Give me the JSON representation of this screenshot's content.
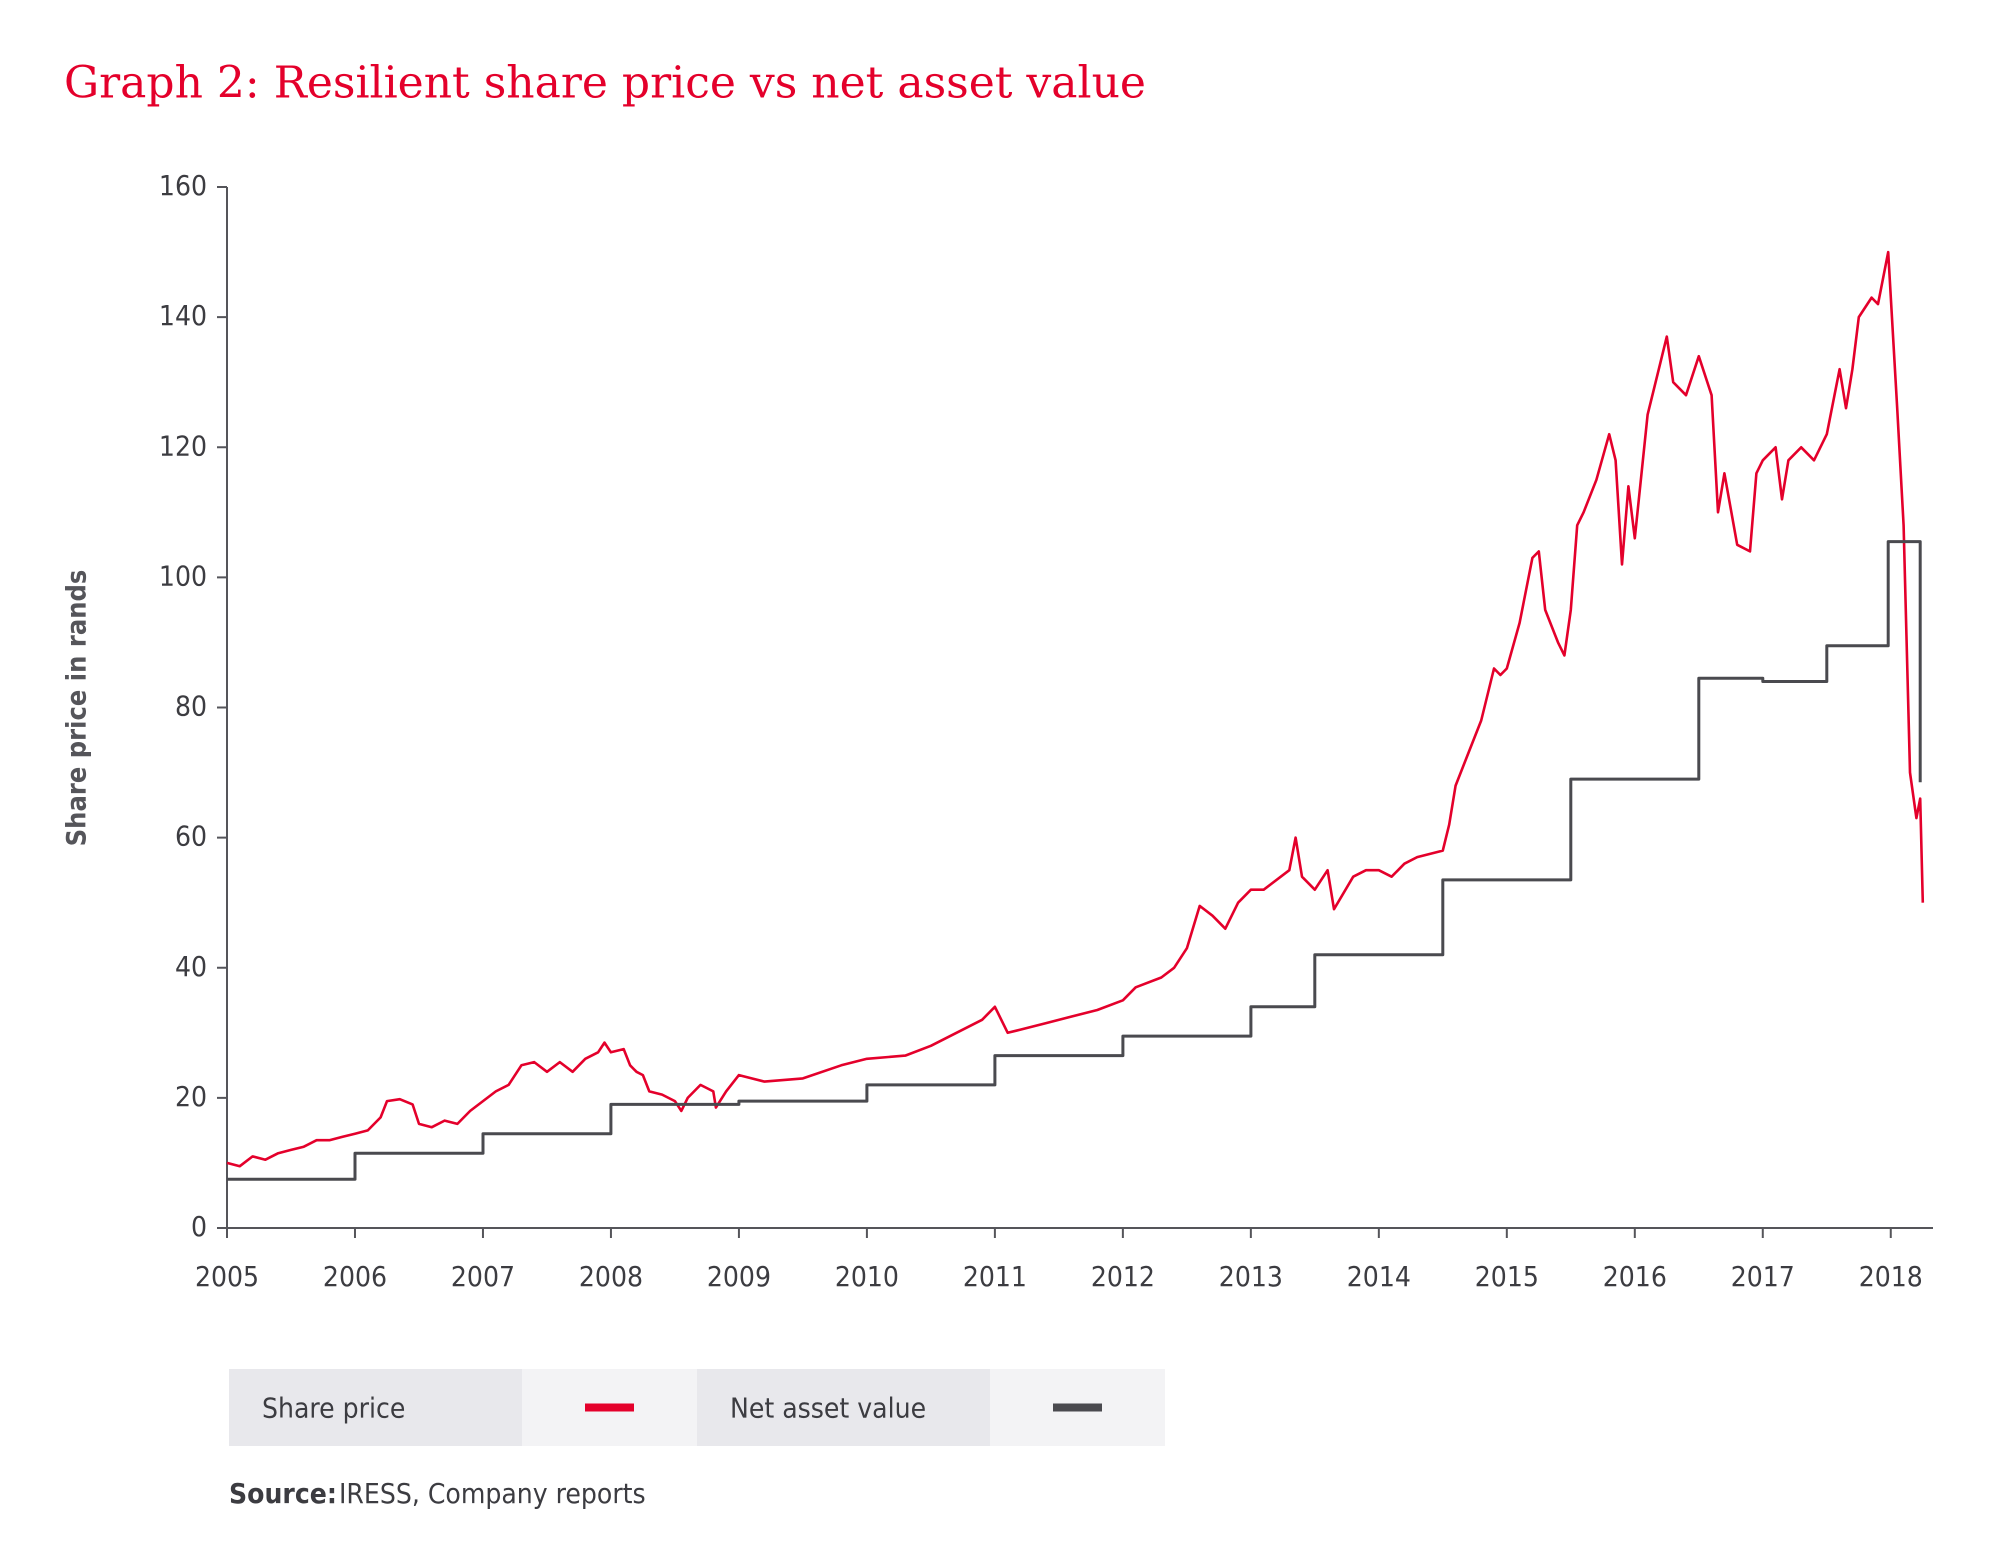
{
  "chart_data": {
    "type": "line",
    "title": "Graph 2: Resilient share price vs net asset value",
    "ylabel": "Share price in rands",
    "xlim": [
      2005,
      2018.33
    ],
    "xticks": [
      2005,
      2006,
      2007,
      2008,
      2009,
      2010,
      2011,
      2012,
      2013,
      2014,
      2015,
      2016,
      2017,
      2018
    ],
    "ylim": [
      0,
      160
    ],
    "yticks": [
      0,
      20,
      40,
      60,
      80,
      100,
      120,
      140,
      160
    ],
    "grid": false,
    "legend": "bottom",
    "series": [
      {
        "name": "Share price",
        "color": "#e4002b",
        "x": [
          2005.0,
          2005.1,
          2005.2,
          2005.3,
          2005.4,
          2005.5,
          2005.6,
          2005.7,
          2005.8,
          2005.9,
          2006.0,
          2006.1,
          2006.2,
          2006.25,
          2006.35,
          2006.45,
          2006.5,
          2006.6,
          2006.7,
          2006.8,
          2006.9,
          2007.0,
          2007.1,
          2007.2,
          2007.3,
          2007.4,
          2007.5,
          2007.6,
          2007.7,
          2007.8,
          2007.9,
          2007.95,
          2008.0,
          2008.1,
          2008.15,
          2008.2,
          2008.25,
          2008.3,
          2008.4,
          2008.5,
          2008.55,
          2008.6,
          2008.7,
          2008.8,
          2008.82,
          2008.9,
          2009.0,
          2009.1,
          2009.2,
          2009.5,
          2009.8,
          2010.0,
          2010.3,
          2010.5,
          2010.7,
          2010.9,
          2011.0,
          2011.1,
          2011.2,
          2011.4,
          2011.6,
          2011.8,
          2012.0,
          2012.1,
          2012.3,
          2012.4,
          2012.5,
          2012.6,
          2012.7,
          2012.8,
          2012.9,
          2013.0,
          2013.1,
          2013.3,
          2013.35,
          2013.4,
          2013.5,
          2013.6,
          2013.65,
          2013.8,
          2013.9,
          2014.0,
          2014.1,
          2014.2,
          2014.3,
          2014.5,
          2014.55,
          2014.6,
          2014.7,
          2014.8,
          2014.9,
          2014.95,
          2015.0,
          2015.1,
          2015.2,
          2015.25,
          2015.3,
          2015.4,
          2015.45,
          2015.5,
          2015.55,
          2015.6,
          2015.7,
          2015.8,
          2015.85,
          2015.9,
          2015.95,
          2016.0,
          2016.1,
          2016.2,
          2016.25,
          2016.3,
          2016.4,
          2016.5,
          2016.6,
          2016.65,
          2016.7,
          2016.8,
          2016.9,
          2016.95,
          2017.0,
          2017.1,
          2017.15,
          2017.2,
          2017.3,
          2017.4,
          2017.5,
          2017.6,
          2017.65,
          2017.7,
          2017.75,
          2017.85,
          2017.9,
          2017.98,
          2018.05,
          2018.1,
          2018.15,
          2018.2,
          2018.23,
          2018.25
        ],
        "values": [
          10,
          9.5,
          11,
          10.5,
          11.5,
          12,
          12.5,
          13.5,
          13.5,
          14,
          14.5,
          15,
          17,
          19.5,
          19.8,
          19,
          16,
          15.5,
          16.5,
          16,
          18,
          19.5,
          21,
          22,
          25,
          25.5,
          24,
          25.5,
          24,
          26,
          27,
          28.5,
          27,
          27.5,
          25,
          24,
          23.5,
          21,
          20.5,
          19.5,
          18,
          20,
          22,
          21,
          18.5,
          21,
          23.5,
          23,
          22.5,
          23,
          25,
          26,
          26.5,
          28,
          30,
          32,
          34,
          30,
          30.5,
          31.5,
          32.5,
          33.5,
          35,
          37,
          38.5,
          40,
          43,
          49.5,
          48,
          46,
          50,
          52,
          52,
          55,
          60,
          54,
          52,
          55,
          49,
          54,
          55,
          55,
          54,
          56,
          57,
          58,
          62,
          68,
          73,
          78,
          86,
          85,
          86,
          93,
          103,
          104,
          95,
          90,
          88,
          95,
          108,
          110,
          115,
          122,
          118,
          102,
          114,
          106,
          125,
          133,
          137,
          130,
          128,
          134,
          128,
          110,
          116,
          105,
          104,
          116,
          118,
          120,
          112,
          118,
          120,
          118,
          122,
          132,
          126,
          132,
          140,
          143,
          142,
          150,
          126,
          108,
          70,
          63,
          66,
          50
        ]
      },
      {
        "name": "Net asset value",
        "color": "#4a4a4f",
        "x": [
          2005.0,
          2006.0,
          2006.0,
          2007.0,
          2007.0,
          2008.0,
          2008.0,
          2009.0,
          2009.0,
          2010.0,
          2010.0,
          2011.0,
          2011.0,
          2012.0,
          2012.0,
          2013.0,
          2013.0,
          2013.5,
          2013.5,
          2014.5,
          2014.5,
          2015.5,
          2015.5,
          2016.5,
          2016.5,
          2017.0,
          2017.0,
          2017.5,
          2017.5,
          2017.98,
          2017.98,
          2018.23,
          2018.23
        ],
        "values": [
          7.5,
          7.5,
          11.5,
          11.5,
          14.5,
          14.5,
          19,
          19,
          19.5,
          19.5,
          22,
          22,
          26.5,
          26.5,
          29.5,
          29.5,
          34,
          34,
          42,
          42,
          53.5,
          53.5,
          69,
          69,
          84.5,
          84.5,
          84,
          84,
          89.5,
          89.5,
          105.5,
          105.5,
          68.5
        ]
      }
    ]
  },
  "footer": {
    "source_label": "Source:",
    "source": "IRESS, Company reports"
  }
}
